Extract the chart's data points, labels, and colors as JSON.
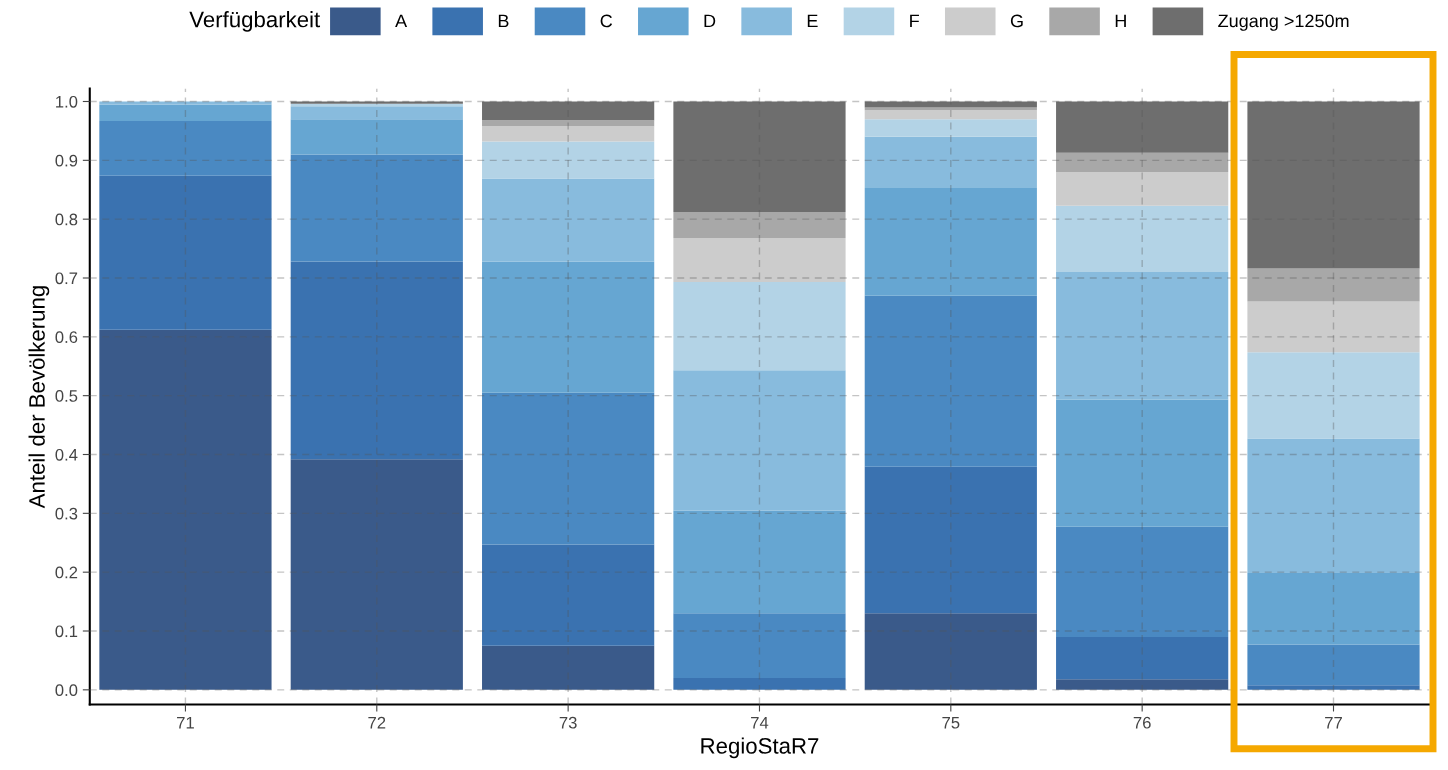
{
  "chart_data": {
    "type": "bar",
    "stacked": true,
    "xlabel": "RegioStaR7",
    "ylabel": "Anteil der Bevölkerung",
    "legend_title": "Verfügbarkeit",
    "legend": "top",
    "grid": true,
    "categories": [
      "71",
      "72",
      "73",
      "74",
      "75",
      "76",
      "77"
    ],
    "ylim": [
      -0.025,
      1.022
    ],
    "yticks": [
      {
        "value": 0,
        "label": "0.0"
      },
      {
        "value": 0.1,
        "label": "0.1"
      },
      {
        "value": 0.2,
        "label": "0.2"
      },
      {
        "value": 0.3,
        "label": "0.3"
      },
      {
        "value": 0.4,
        "label": "0.4"
      },
      {
        "value": 0.5,
        "label": "0.5"
      },
      {
        "value": 0.6,
        "label": "0.6"
      },
      {
        "value": 0.7,
        "label": "0.7"
      },
      {
        "value": 0.8,
        "label": "0.8"
      },
      {
        "value": 0.9,
        "label": "0.9"
      },
      {
        "value": 1,
        "label": "1.0"
      }
    ],
    "series": [
      {
        "name": "A",
        "color": "#3a5a8a",
        "values": [
          0.612,
          0.392,
          0.075,
          0,
          0.13,
          0.018,
          0
        ]
      },
      {
        "name": "B",
        "color": "#3a72b0",
        "values": [
          0.262,
          0.336,
          0.172,
          0.02,
          0.249,
          0.072,
          0.008
        ]
      },
      {
        "name": "C",
        "color": "#4a89c2",
        "values": [
          0.093,
          0.182,
          0.258,
          0.11,
          0.291,
          0.187,
          0.069
        ]
      },
      {
        "name": "D",
        "color": "#66a6d2",
        "values": [
          0.028,
          0.06,
          0.223,
          0.175,
          0.183,
          0.216,
          0.123
        ]
      },
      {
        "name": "E",
        "color": "#88bbdd",
        "values": [
          0.005,
          0.022,
          0.141,
          0.238,
          0.087,
          0.217,
          0.227
        ]
      },
      {
        "name": "F",
        "color": "#b3d3e6",
        "values": [
          0,
          0.004,
          0.063,
          0.15,
          0.03,
          0.113,
          0.147
        ]
      },
      {
        "name": "G",
        "color": "#cccccc",
        "values": [
          0,
          0,
          0.026,
          0.075,
          0.015,
          0.057,
          0.086
        ]
      },
      {
        "name": "H",
        "color": "#a8a8a8",
        "values": [
          0,
          0,
          0.01,
          0.044,
          0.005,
          0.033,
          0.056
        ]
      },
      {
        "name": "Zugang >1250m",
        "color": "#6e6e6e",
        "values": [
          0,
          0.004,
          0.032,
          0.188,
          0.01,
          0.087,
          0.284
        ]
      }
    ]
  }
}
